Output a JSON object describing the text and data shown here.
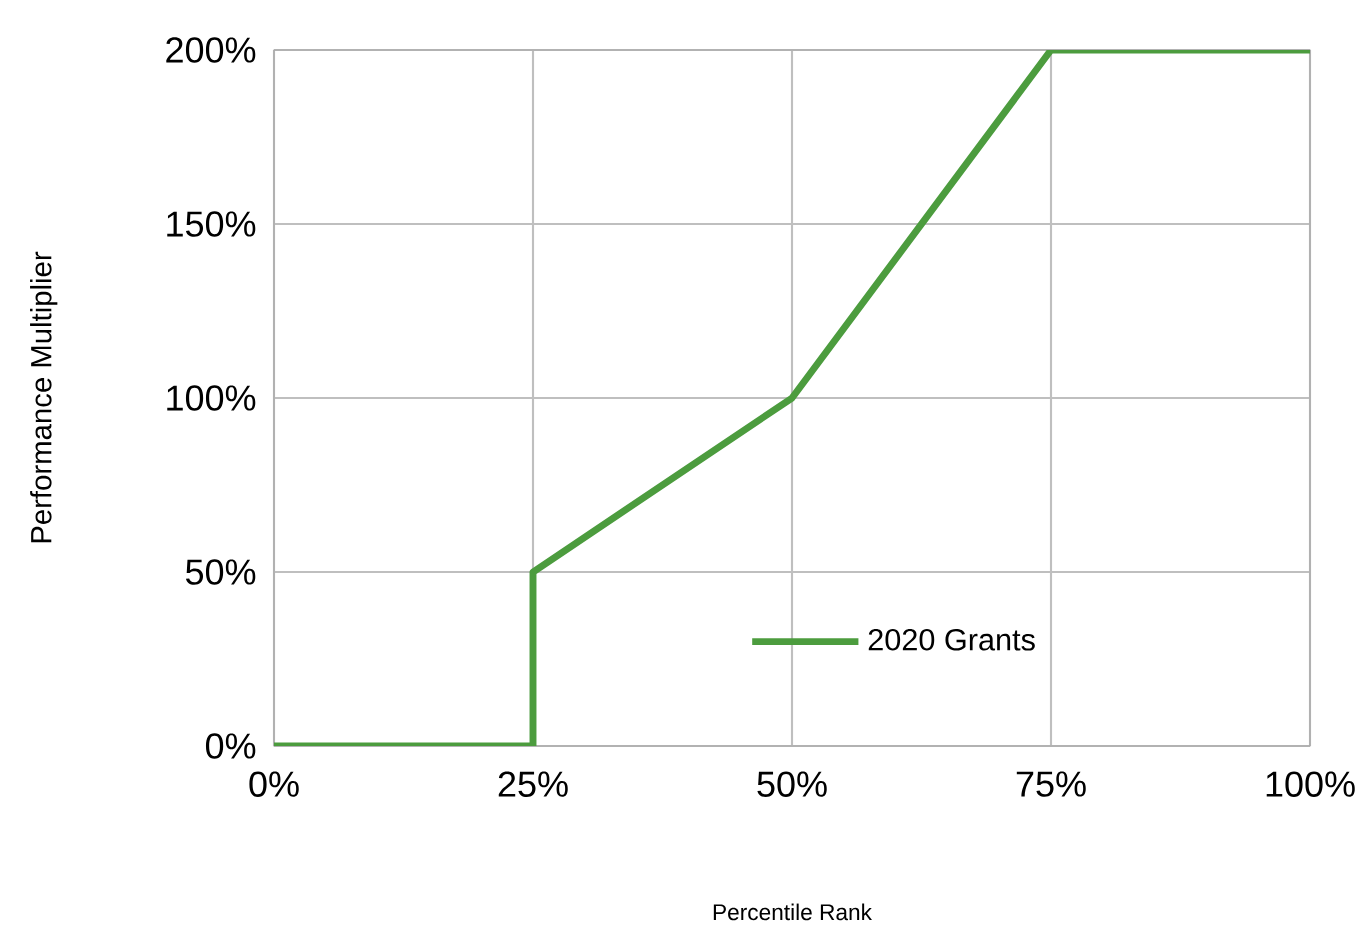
{
  "chart_data": {
    "type": "line",
    "xlabel": "Percentile Rank",
    "ylabel": "Performance Multiplier",
    "series": [
      {
        "name": "2020 Grants",
        "color": "#4c9c3e",
        "x": [
          0,
          25,
          25,
          50,
          75,
          100
        ],
        "values": [
          0,
          0,
          50,
          100,
          200,
          200
        ]
      }
    ],
    "xlim": [
      0,
      100
    ],
    "xticks": [
      {
        "value": 0,
        "label": "0%"
      },
      {
        "value": 25,
        "label": "25%"
      },
      {
        "value": 50,
        "label": "50%"
      },
      {
        "value": 75,
        "label": "75%"
      },
      {
        "value": 100,
        "label": "100%"
      }
    ],
    "ylim": [
      0,
      200
    ],
    "yticks": [
      {
        "value": 0,
        "label": "0%"
      },
      {
        "value": 50,
        "label": "50%"
      },
      {
        "value": 100,
        "label": "100%"
      },
      {
        "value": 150,
        "label": "150%"
      },
      {
        "value": 200,
        "label": "200%"
      }
    ],
    "grid": true,
    "legend": "bottom",
    "marker": "none",
    "line_style": "solid"
  }
}
